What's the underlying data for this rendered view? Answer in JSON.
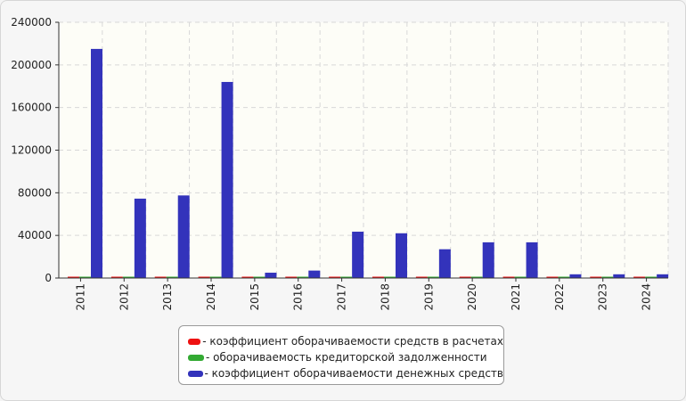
{
  "chart_data": {
    "type": "bar",
    "title": "",
    "xlabel": "",
    "ylabel": "",
    "categories": [
      "2011",
      "2012",
      "2013",
      "2014",
      "2015",
      "2016",
      "2017",
      "2018",
      "2019",
      "2020",
      "2021",
      "2022",
      "2023",
      "2024"
    ],
    "ylim": [
      0,
      240000
    ],
    "yticks": [
      0,
      40000,
      80000,
      120000,
      160000,
      200000,
      240000
    ],
    "ytick_labels": [
      "0",
      "40000",
      "80000",
      "120000",
      "160000",
      "200000",
      "240000"
    ],
    "grid": true,
    "legend_position": "bottom",
    "series": [
      {
        "name": "- коэффициент оборачиваемости средств в расчетах",
        "color": "#ee1111",
        "values": [
          2,
          3,
          3,
          2,
          2,
          2,
          2,
          2,
          2,
          2,
          2,
          2,
          2,
          2
        ]
      },
      {
        "name": "- оборачиваемость кредиторской задолженности",
        "color": "#33aa33",
        "values": [
          2,
          2,
          2,
          2,
          2,
          2,
          2,
          2,
          2,
          2,
          2,
          2,
          2,
          2
        ]
      },
      {
        "name": "- коэффициент оборачиваемости денежных средств",
        "color": "#3333bb",
        "values": [
          215000,
          74500,
          77500,
          184000,
          5000,
          7000,
          43500,
          42000,
          27000,
          33500,
          33500,
          3500,
          3500,
          3500
        ]
      }
    ]
  }
}
